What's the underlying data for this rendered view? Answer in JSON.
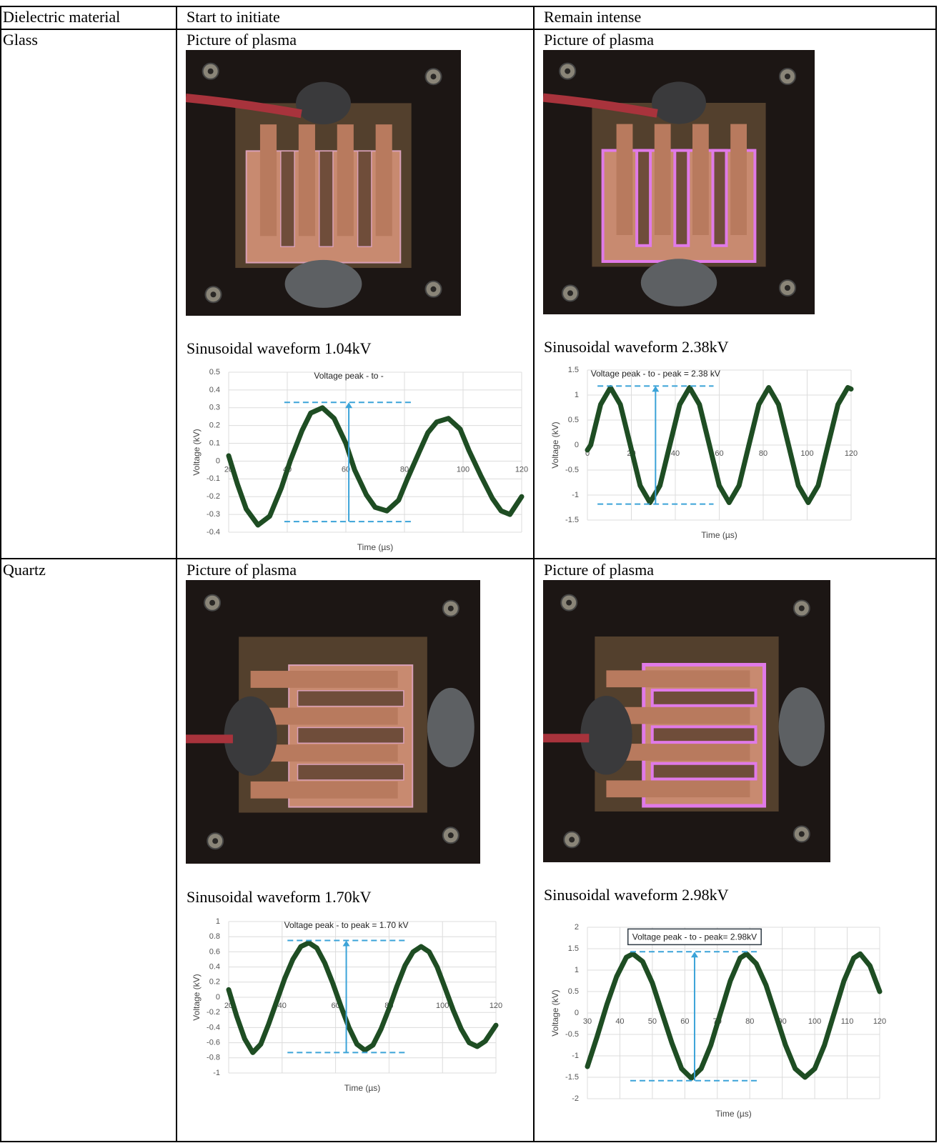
{
  "table": {
    "header": [
      "Dielectric material",
      "Start to initiate",
      "Remain intense"
    ],
    "rows": [
      {
        "material": "Glass",
        "cells": [
          {
            "picture_label": "Picture of plasma",
            "waveform_label": "Sinusoidal waveform 1.04kV",
            "chart": {
              "type": "line",
              "annotation": "Voltage  peak - to -",
              "xlabel": "Time (µs)",
              "ylabel": "Voltage (kV)",
              "x": [
                20,
                23,
                26,
                30,
                34,
                38,
                41,
                45,
                48,
                52,
                56,
                60,
                63,
                67,
                70,
                74,
                78,
                81,
                85,
                88,
                91,
                95,
                99,
                102,
                106,
                110,
                113,
                116,
                120
              ],
              "values": [
                0.03,
                -0.13,
                -0.27,
                -0.36,
                -0.31,
                -0.15,
                0.0,
                0.17,
                0.27,
                0.3,
                0.24,
                0.1,
                -0.05,
                -0.19,
                -0.26,
                -0.28,
                -0.22,
                -0.1,
                0.05,
                0.16,
                0.22,
                0.24,
                0.18,
                0.06,
                -0.08,
                -0.21,
                -0.28,
                -0.3,
                -0.2
              ],
              "xlim": [
                20,
                120
              ],
              "ylim": [
                -0.4,
                0.5
              ],
              "xticks": [
                20,
                40,
                60,
                80,
                100,
                120
              ],
              "yticks": [
                -0.4,
                -0.3,
                -0.2,
                -0.1,
                0,
                0.1,
                0.2,
                0.3,
                0.4,
                0.5
              ],
              "grid": true,
              "color": "#1e4d23",
              "ref_lines": [
                0.33,
                -0.34
              ],
              "arrow_x": 61
            }
          },
          {
            "picture_label": "Picture of plasma",
            "waveform_label": "Sinusoidal waveform 2.38kV",
            "chart": {
              "type": "line",
              "annotation": "Voltage peak - to - peak = 2.38 kV",
              "xlabel": "Time (µs)",
              "ylabel": "Voltage (kV)",
              "x": [
                0,
                1.5,
                6,
                10.5,
                15,
                19.5,
                24,
                28.5,
                33,
                37.5,
                42,
                46.5,
                51,
                55.5,
                60,
                64.5,
                69,
                73.5,
                78,
                82.5,
                87,
                91.5,
                96,
                100.5,
                105,
                109.5,
                114,
                118.5,
                120
              ],
              "values": [
                -0.1,
                0,
                0.81,
                1.15,
                0.81,
                0,
                -0.81,
                -1.15,
                -0.81,
                0,
                0.81,
                1.15,
                0.81,
                0,
                -0.81,
                -1.15,
                -0.81,
                0,
                0.81,
                1.15,
                0.81,
                0,
                -0.81,
                -1.15,
                -0.81,
                0,
                0.81,
                1.15,
                1.12
              ],
              "xlim": [
                0,
                120
              ],
              "ylim": [
                -1.5,
                1.5
              ],
              "xticks": [
                0,
                20,
                40,
                60,
                80,
                100,
                120
              ],
              "yticks": [
                -1.5,
                -1,
                -0.5,
                0,
                0.5,
                1,
                1.5
              ],
              "grid": true,
              "color": "#1e4d23",
              "ref_lines": [
                1.18,
                -1.18
              ],
              "arrow_x": 31
            }
          }
        ]
      },
      {
        "material": "Quartz",
        "cells": [
          {
            "picture_label": "Picture of plasma",
            "waveform_label": "Sinusoidal waveform 1.70kV",
            "chart": {
              "type": "line",
              "annotation": "Voltage peak - to peak = 1.70 kV",
              "xlabel": "Time (µs)",
              "ylabel": "Voltage (kV)",
              "x": [
                20,
                23,
                26,
                29,
                32,
                35,
                38,
                41,
                44,
                47,
                50,
                53,
                56,
                59,
                62,
                65,
                68,
                71,
                74,
                77,
                80,
                83,
                86,
                89,
                92,
                95,
                98,
                101,
                104,
                107,
                110,
                113,
                116,
                120
              ],
              "values": [
                0.1,
                -0.25,
                -0.55,
                -0.73,
                -0.62,
                -0.35,
                -0.05,
                0.25,
                0.5,
                0.67,
                0.72,
                0.65,
                0.45,
                0.18,
                -0.12,
                -0.4,
                -0.62,
                -0.7,
                -0.63,
                -0.42,
                -0.15,
                0.15,
                0.42,
                0.6,
                0.67,
                0.6,
                0.4,
                0.12,
                -0.17,
                -0.42,
                -0.6,
                -0.65,
                -0.58,
                -0.37
              ],
              "xlim": [
                20,
                120
              ],
              "ylim": [
                -1,
                1
              ],
              "xticks": [
                20,
                40,
                60,
                80,
                100,
                120
              ],
              "yticks": [
                -1,
                -0.8,
                -0.6,
                -0.4,
                -0.2,
                0,
                0.2,
                0.4,
                0.6,
                0.8,
                1
              ],
              "grid": true,
              "color": "#1e4d23",
              "ref_lines": [
                0.75,
                -0.73
              ],
              "arrow_x": 64
            }
          },
          {
            "picture_label": "Picture of plasma",
            "waveform_label": "Sinusoidal waveform 2.98kV",
            "chart": {
              "type": "line",
              "annotation": "Voltage peak - to - peak= 2.98kV",
              "annotation_box": true,
              "xlabel": "Time (µs)",
              "ylabel": "Voltage (kV)",
              "x": [
                30,
                33,
                36,
                39,
                42,
                44,
                47,
                50,
                53,
                56,
                59,
                62,
                65,
                68,
                71,
                74,
                77,
                79,
                82,
                85,
                88,
                91,
                94,
                97,
                100,
                103,
                106,
                109,
                112,
                114,
                117,
                120
              ],
              "values": [
                -1.25,
                -0.55,
                0.2,
                0.85,
                1.3,
                1.38,
                1.2,
                0.7,
                0.0,
                -0.7,
                -1.3,
                -1.52,
                -1.3,
                -0.75,
                0.0,
                0.75,
                1.28,
                1.38,
                1.15,
                0.65,
                -0.05,
                -0.75,
                -1.3,
                -1.5,
                -1.3,
                -0.75,
                0.0,
                0.75,
                1.28,
                1.38,
                1.1,
                0.5
              ],
              "xlim": [
                30,
                120
              ],
              "ylim": [
                -2,
                2
              ],
              "xticks": [
                30,
                40,
                50,
                60,
                70,
                80,
                90,
                100,
                110,
                120
              ],
              "yticks": [
                -2,
                -1.5,
                -1,
                -0.5,
                0,
                0.5,
                1,
                1.5,
                2
              ],
              "grid": true,
              "color": "#1e4d23",
              "ref_lines": [
                1.43,
                -1.58
              ],
              "arrow_x": 63
            }
          }
        ]
      }
    ]
  }
}
